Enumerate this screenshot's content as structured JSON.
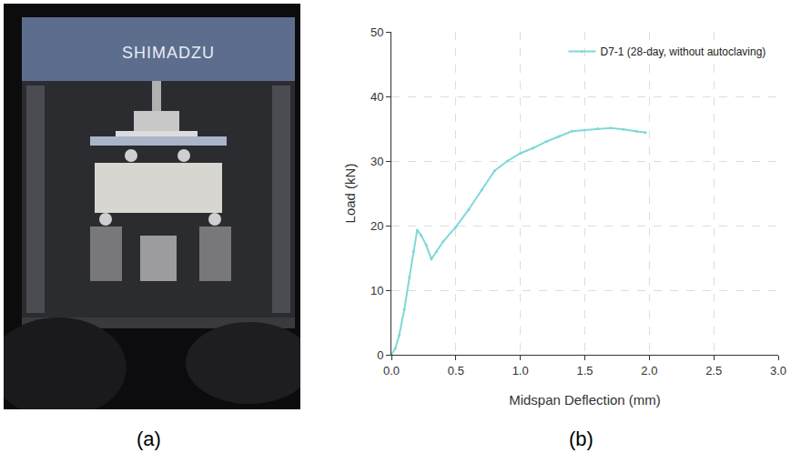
{
  "panel_labels": [
    "(a)",
    "(b)"
  ],
  "photo": {
    "brand": "SHIMADZU"
  },
  "chart_data": {
    "type": "line",
    "x_label": "Midspan Deflection (mm)",
    "y_label": "Load (kN)",
    "series": [
      {
        "name": "D7-1 (28-day, without autoclaving)",
        "color": "#7fd8d8",
        "marker": "circle",
        "line_style": "solid",
        "x": [
          0,
          0.03,
          0.06,
          0.1,
          0.14,
          0.17,
          0.2,
          0.23,
          0.27,
          0.31,
          0.35,
          0.4,
          0.5,
          0.6,
          0.7,
          0.8,
          0.9,
          1.0,
          1.1,
          1.2,
          1.3,
          1.4,
          1.5,
          1.6,
          1.7,
          1.8,
          1.9,
          1.97
        ],
        "values": [
          0,
          1,
          3,
          7,
          12,
          16,
          19.3,
          18.5,
          17,
          14.8,
          16,
          17.5,
          19.8,
          22.5,
          25.5,
          28.5,
          30,
          31.2,
          32,
          33,
          33.8,
          34.6,
          34.8,
          35,
          35.1,
          34.9,
          34.6,
          34.4
        ]
      }
    ],
    "xlim": [
      0,
      3
    ],
    "xticks": [
      {
        "value": 0,
        "label": "0.0"
      },
      0.5,
      {
        "value": 1,
        "label": "1.0"
      },
      1.5,
      {
        "value": 2,
        "label": "2.0"
      },
      2.5,
      {
        "value": 3,
        "label": "3.0"
      }
    ],
    "ylim": [
      0,
      50
    ],
    "yticks": [
      0,
      10,
      20,
      30,
      40,
      50
    ],
    "grid": true,
    "legend": "top right"
  }
}
